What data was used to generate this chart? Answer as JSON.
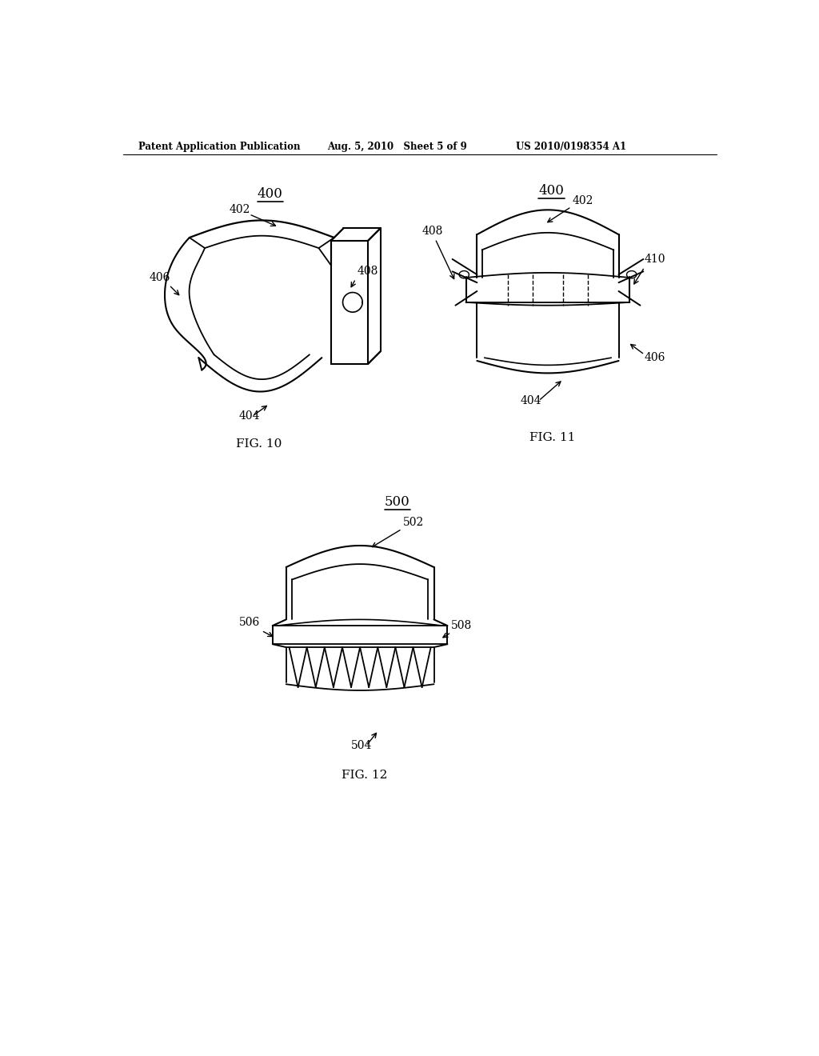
{
  "background_color": "#ffffff",
  "header_left": "Patent Application Publication",
  "header_center": "Aug. 5, 2010   Sheet 5 of 9",
  "header_right": "US 2010/0198354 A1",
  "fig10_label": "FIG. 10",
  "fig11_label": "FIG. 11",
  "fig12_label": "FIG. 12",
  "line_color": "#000000",
  "text_color": "#000000"
}
